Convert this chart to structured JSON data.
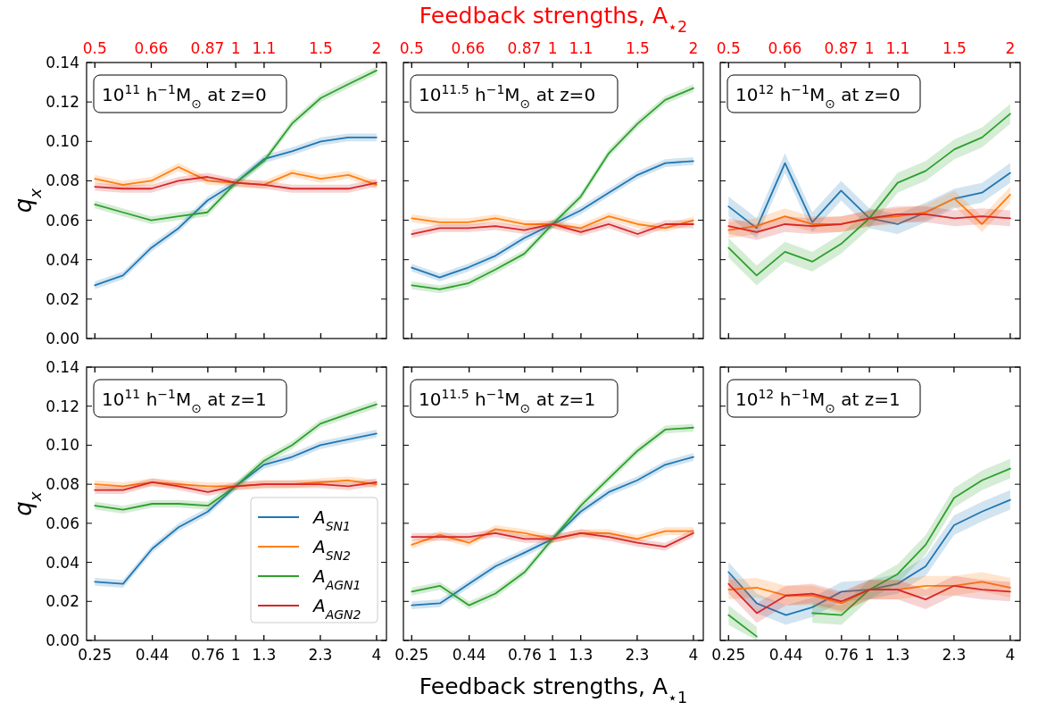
{
  "chart_data": [
    {
      "type": "line",
      "x": [
        0.5,
        0.574,
        0.66,
        0.755,
        0.87,
        1,
        1.149,
        1.319,
        1.52,
        1.741,
        2
      ],
      "log": "x",
      "xlim": [
        0.48,
        2.1
      ],
      "xticks": [
        0.5,
        0.66,
        0.87,
        1,
        {
          "value": 1.15,
          "label": "1.1"
        },
        {
          "value": 1.52,
          "label": "1.5"
        },
        2
      ],
      "ylabel": "q$_{x}$",
      "ylim": [
        0,
        0.14
      ],
      "yticks": [
        {
          "value": 0,
          "label": "0.00"
        },
        {
          "value": 0.02,
          "label": "0.02"
        },
        {
          "value": 0.04,
          "label": "0.04"
        },
        {
          "value": 0.06,
          "label": "0.06"
        },
        {
          "value": 0.08,
          "label": "0.08"
        },
        {
          "value": 0.1,
          "label": "0.10"
        },
        {
          "value": 0.12,
          "label": "0.12"
        },
        {
          "value": 0.14,
          "label": "0.14"
        }
      ],
      "annotations": [
        "10$^{11}$ h$^{−1}$M$_{⊙}$ at z=0"
      ],
      "series": [
        {
          "color": "#1f77b4",
          "values": [
            0.027,
            0.032,
            0.046,
            0.056,
            0.07,
            0.079,
            0.091,
            0.095,
            0.1,
            0.102,
            0.102
          ],
          "lower": [
            0.025,
            0.03,
            0.044,
            0.054,
            0.068,
            0.077,
            0.089,
            0.093,
            0.098,
            0.1,
            0.1
          ],
          "upper": [
            0.029,
            0.034,
            0.048,
            0.058,
            0.072,
            0.081,
            0.093,
            0.097,
            0.102,
            0.104,
            0.104
          ]
        },
        {
          "color": "#ff7f0e",
          "values": [
            0.081,
            0.078,
            0.08,
            0.087,
            0.08,
            0.079,
            0.078,
            0.084,
            0.081,
            0.083,
            0.078
          ],
          "lower": [
            0.079,
            0.076,
            0.078,
            0.085,
            0.078,
            0.077,
            0.076,
            0.082,
            0.079,
            0.081,
            0.076
          ],
          "upper": [
            0.083,
            0.08,
            0.082,
            0.089,
            0.082,
            0.081,
            0.08,
            0.086,
            0.083,
            0.085,
            0.08
          ]
        },
        {
          "color": "#2ca02c",
          "values": [
            0.068,
            0.064,
            0.06,
            0.062,
            0.064,
            0.079,
            0.09,
            0.109,
            0.122,
            0.129,
            0.136
          ],
          "lower": [
            0.066,
            0.062,
            0.058,
            0.06,
            0.062,
            0.077,
            0.088,
            0.107,
            0.12,
            0.127,
            0.134
          ],
          "upper": [
            0.07,
            0.066,
            0.062,
            0.064,
            0.066,
            0.081,
            0.092,
            0.111,
            0.124,
            0.131,
            0.138
          ]
        },
        {
          "color": "#d62728",
          "values": [
            0.077,
            0.076,
            0.076,
            0.08,
            0.082,
            0.079,
            0.078,
            0.076,
            0.076,
            0.076,
            0.079
          ],
          "lower": [
            0.075,
            0.074,
            0.074,
            0.078,
            0.08,
            0.077,
            0.076,
            0.074,
            0.074,
            0.074,
            0.077
          ],
          "upper": [
            0.079,
            0.078,
            0.078,
            0.082,
            0.084,
            0.081,
            0.08,
            0.078,
            0.078,
            0.078,
            0.081
          ]
        }
      ]
    },
    {
      "type": "line",
      "x": [
        0.5,
        0.574,
        0.66,
        0.755,
        0.87,
        1,
        1.149,
        1.319,
        1.52,
        1.741,
        2
      ],
      "log": "x",
      "xlim": [
        0.48,
        2.1
      ],
      "xticks": [
        0.5,
        0.66,
        0.87,
        1,
        {
          "value": 1.15,
          "label": "1.1"
        },
        {
          "value": 1.52,
          "label": "1.5"
        },
        2
      ],
      "xlabel": "Feedback strengths, A$_{⋆2}$",
      "ylim": [
        0,
        0.14
      ],
      "yticks": [
        0,
        0.02,
        0.04,
        0.06,
        0.08,
        0.1,
        0.12,
        0.14
      ],
      "tick_labels": "x",
      "annotations": [
        "10$^{11.5}$ h$^{−1}$M$_{⊙}$ at z=0"
      ],
      "series": [
        {
          "color": "#1f77b4",
          "values": [
            0.036,
            0.031,
            0.036,
            0.042,
            0.051,
            0.058,
            0.065,
            0.074,
            0.083,
            0.089,
            0.09
          ],
          "lower": [
            0.034,
            0.029,
            0.034,
            0.04,
            0.049,
            0.056,
            0.063,
            0.072,
            0.081,
            0.087,
            0.088
          ],
          "upper": [
            0.038,
            0.033,
            0.038,
            0.044,
            0.053,
            0.06,
            0.067,
            0.076,
            0.085,
            0.091,
            0.092
          ]
        },
        {
          "color": "#ff7f0e",
          "values": [
            0.061,
            0.059,
            0.059,
            0.061,
            0.058,
            0.058,
            0.056,
            0.062,
            0.058,
            0.056,
            0.06
          ],
          "lower": [
            0.059,
            0.057,
            0.057,
            0.059,
            0.056,
            0.056,
            0.054,
            0.06,
            0.056,
            0.054,
            0.058
          ],
          "upper": [
            0.063,
            0.061,
            0.061,
            0.063,
            0.06,
            0.06,
            0.058,
            0.064,
            0.06,
            0.058,
            0.062
          ]
        },
        {
          "color": "#2ca02c",
          "values": [
            0.027,
            0.025,
            0.028,
            0.035,
            0.043,
            0.058,
            0.072,
            0.094,
            0.109,
            0.121,
            0.127
          ],
          "lower": [
            0.025,
            0.023,
            0.026,
            0.033,
            0.041,
            0.056,
            0.07,
            0.092,
            0.107,
            0.119,
            0.125
          ],
          "upper": [
            0.029,
            0.027,
            0.03,
            0.037,
            0.045,
            0.06,
            0.074,
            0.096,
            0.111,
            0.123,
            0.129
          ]
        },
        {
          "color": "#d62728",
          "values": [
            0.053,
            0.056,
            0.056,
            0.057,
            0.055,
            0.058,
            0.054,
            0.058,
            0.053,
            0.058,
            0.058
          ],
          "lower": [
            0.051,
            0.054,
            0.054,
            0.055,
            0.053,
            0.056,
            0.052,
            0.056,
            0.051,
            0.056,
            0.056
          ],
          "upper": [
            0.055,
            0.058,
            0.058,
            0.059,
            0.057,
            0.06,
            0.056,
            0.06,
            0.055,
            0.06,
            0.06
          ]
        }
      ]
    },
    {
      "type": "line",
      "x": [
        0.5,
        0.574,
        0.66,
        0.755,
        0.87,
        1,
        1.149,
        1.319,
        1.52,
        1.741,
        2
      ],
      "log": "x",
      "xlim": [
        0.48,
        2.1
      ],
      "xticks": [
        0.5,
        0.66,
        0.87,
        1,
        {
          "value": 1.15,
          "label": "1.1"
        },
        {
          "value": 1.52,
          "label": "1.5"
        },
        2
      ],
      "ylim": [
        0,
        0.14
      ],
      "yticks": [
        0,
        0.02,
        0.04,
        0.06,
        0.08,
        0.1,
        0.12,
        0.14
      ],
      "tick_labels": "x",
      "annotations": [
        "10$^{12}$ h$^{−1}$M$_{⊙}$ at z=0"
      ],
      "series": [
        {
          "color": "#1f77b4",
          "values": [
            0.067,
            0.056,
            0.089,
            0.059,
            0.075,
            0.061,
            0.058,
            0.064,
            0.071,
            0.074,
            0.084
          ],
          "lower": [
            0.062,
            0.051,
            0.084,
            0.054,
            0.07,
            0.056,
            0.053,
            0.059,
            0.066,
            0.069,
            0.079
          ],
          "upper": [
            0.072,
            0.061,
            0.094,
            0.064,
            0.08,
            0.066,
            0.063,
            0.069,
            0.076,
            0.079,
            0.089
          ]
        },
        {
          "color": "#ff7f0e",
          "values": [
            0.055,
            0.057,
            0.062,
            0.058,
            0.058,
            0.061,
            0.062,
            0.064,
            0.071,
            0.058,
            0.073
          ],
          "lower": [
            0.051,
            0.053,
            0.058,
            0.054,
            0.054,
            0.057,
            0.058,
            0.06,
            0.067,
            0.054,
            0.069
          ],
          "upper": [
            0.059,
            0.061,
            0.066,
            0.062,
            0.062,
            0.065,
            0.066,
            0.068,
            0.075,
            0.062,
            0.077
          ]
        },
        {
          "color": "#2ca02c",
          "values": [
            0.046,
            0.032,
            0.044,
            0.039,
            0.048,
            0.061,
            0.079,
            0.085,
            0.096,
            0.102,
            0.114
          ],
          "lower": [
            0.041,
            0.027,
            0.039,
            0.034,
            0.043,
            0.056,
            0.074,
            0.08,
            0.091,
            0.097,
            0.109
          ],
          "upper": [
            0.051,
            0.037,
            0.049,
            0.044,
            0.053,
            0.066,
            0.084,
            0.09,
            0.101,
            0.107,
            0.119
          ]
        },
        {
          "color": "#d62728",
          "values": [
            0.057,
            0.054,
            0.058,
            0.057,
            0.058,
            0.061,
            0.063,
            0.063,
            0.061,
            0.062,
            0.061
          ],
          "lower": [
            0.053,
            0.05,
            0.054,
            0.053,
            0.054,
            0.057,
            0.059,
            0.059,
            0.057,
            0.058,
            0.057
          ],
          "upper": [
            0.061,
            0.058,
            0.062,
            0.061,
            0.062,
            0.065,
            0.067,
            0.067,
            0.065,
            0.066,
            0.065
          ]
        }
      ]
    },
    {
      "type": "line",
      "x": [
        0.25,
        0.33,
        0.44,
        0.57,
        0.76,
        1,
        1.32,
        1.74,
        2.3,
        3.03,
        4
      ],
      "log": "x",
      "xlim": [
        0.2304,
        4.41
      ],
      "xticks": [
        0.25,
        0.44,
        0.76,
        1,
        {
          "value": 1.32,
          "label": "1.3"
        },
        2.3,
        4
      ],
      "ylabel": "q$_{x}$",
      "ylim": [
        0,
        0.14
      ],
      "yticks": [
        {
          "value": 0,
          "label": "0.00"
        },
        {
          "value": 0.02,
          "label": "0.02"
        },
        {
          "value": 0.04,
          "label": "0.04"
        },
        {
          "value": 0.06,
          "label": "0.06"
        },
        {
          "value": 0.08,
          "label": "0.08"
        },
        {
          "value": 0.1,
          "label": "0.10"
        },
        {
          "value": 0.12,
          "label": "0.12"
        },
        {
          "value": 0.14,
          "label": "0.14"
        }
      ],
      "legend": "bottom right",
      "annotations": [
        "10$^{11}$ h$^{−1}$M$_{⊙}$ at z=1"
      ],
      "series": [
        {
          "name": "A$_{SN1}$",
          "color": "#1f77b4",
          "values": [
            0.03,
            0.029,
            0.047,
            0.058,
            0.066,
            0.079,
            0.09,
            0.094,
            0.1,
            0.103,
            0.106
          ],
          "lower": [
            0.028,
            0.027,
            0.045,
            0.056,
            0.064,
            0.077,
            0.088,
            0.092,
            0.098,
            0.101,
            0.104
          ],
          "upper": [
            0.032,
            0.031,
            0.049,
            0.06,
            0.068,
            0.081,
            0.092,
            0.096,
            0.102,
            0.105,
            0.108
          ]
        },
        {
          "name": "A$_{SN2}$",
          "color": "#ff7f0e",
          "values": [
            0.08,
            0.079,
            0.081,
            0.08,
            0.079,
            0.079,
            0.08,
            0.08,
            0.081,
            0.082,
            0.08
          ],
          "lower": [
            0.078,
            0.077,
            0.079,
            0.078,
            0.077,
            0.077,
            0.078,
            0.078,
            0.079,
            0.08,
            0.078
          ],
          "upper": [
            0.082,
            0.081,
            0.083,
            0.082,
            0.081,
            0.081,
            0.082,
            0.082,
            0.083,
            0.084,
            0.082
          ]
        },
        {
          "name": "A$_{AGN1}$",
          "color": "#2ca02c",
          "values": [
            0.069,
            0.067,
            0.07,
            0.07,
            0.069,
            0.079,
            0.092,
            0.1,
            0.111,
            0.116,
            0.121
          ],
          "lower": [
            0.067,
            0.065,
            0.068,
            0.068,
            0.067,
            0.077,
            0.09,
            0.098,
            0.109,
            0.114,
            0.119
          ],
          "upper": [
            0.071,
            0.069,
            0.072,
            0.072,
            0.071,
            0.081,
            0.094,
            0.102,
            0.113,
            0.118,
            0.123
          ]
        },
        {
          "name": "A$_{AGN2}$",
          "color": "#d62728",
          "values": [
            0.077,
            0.077,
            0.081,
            0.079,
            0.076,
            0.079,
            0.08,
            0.08,
            0.08,
            0.079,
            0.081
          ],
          "lower": [
            0.075,
            0.075,
            0.079,
            0.077,
            0.074,
            0.077,
            0.078,
            0.078,
            0.078,
            0.077,
            0.079
          ],
          "upper": [
            0.079,
            0.079,
            0.083,
            0.081,
            0.078,
            0.081,
            0.082,
            0.082,
            0.082,
            0.081,
            0.083
          ]
        }
      ]
    },
    {
      "type": "line",
      "x": [
        0.25,
        0.33,
        0.44,
        0.57,
        0.76,
        1,
        1.32,
        1.74,
        2.3,
        3.03,
        4
      ],
      "log": "x",
      "xlim": [
        0.2304,
        4.41
      ],
      "xticks": [
        0.25,
        0.44,
        0.76,
        1,
        {
          "value": 1.32,
          "label": "1.3"
        },
        2.3,
        4
      ],
      "xlabel": "Feedback strengths, A$_{⋆1}$",
      "ylim": [
        0,
        0.14
      ],
      "yticks": [
        0,
        0.02,
        0.04,
        0.06,
        0.08,
        0.1,
        0.12,
        0.14
      ],
      "tick_labels": "x",
      "annotations": [
        "10$^{11.5}$ h$^{−1}$M$_{⊙}$ at z=1"
      ],
      "series": [
        {
          "color": "#1f77b4",
          "values": [
            0.018,
            0.019,
            0.029,
            0.038,
            0.045,
            0.052,
            0.066,
            0.076,
            0.082,
            0.09,
            0.094
          ],
          "lower": [
            0.016,
            0.017,
            0.027,
            0.036,
            0.043,
            0.05,
            0.064,
            0.074,
            0.08,
            0.088,
            0.092
          ],
          "upper": [
            0.02,
            0.021,
            0.031,
            0.04,
            0.047,
            0.054,
            0.068,
            0.078,
            0.084,
            0.092,
            0.096
          ]
        },
        {
          "color": "#ff7f0e",
          "values": [
            0.049,
            0.054,
            0.05,
            0.057,
            0.055,
            0.052,
            0.055,
            0.055,
            0.052,
            0.056,
            0.056
          ],
          "lower": [
            0.047,
            0.052,
            0.048,
            0.055,
            0.053,
            0.05,
            0.053,
            0.053,
            0.05,
            0.054,
            0.054
          ],
          "upper": [
            0.051,
            0.056,
            0.052,
            0.059,
            0.057,
            0.054,
            0.057,
            0.057,
            0.054,
            0.058,
            0.058
          ]
        },
        {
          "color": "#2ca02c",
          "values": [
            0.025,
            0.028,
            0.018,
            0.024,
            0.035,
            0.052,
            0.069,
            0.083,
            0.097,
            0.108,
            0.109
          ],
          "lower": [
            0.023,
            0.026,
            0.016,
            0.022,
            0.033,
            0.05,
            0.067,
            0.081,
            0.095,
            0.106,
            0.107
          ],
          "upper": [
            0.027,
            0.03,
            0.02,
            0.026,
            0.037,
            0.054,
            0.071,
            0.085,
            0.099,
            0.11,
            0.111
          ]
        },
        {
          "color": "#d62728",
          "values": [
            0.053,
            0.053,
            0.053,
            0.055,
            0.052,
            0.052,
            0.055,
            0.053,
            0.05,
            0.048,
            0.055
          ],
          "lower": [
            0.051,
            0.051,
            0.051,
            0.053,
            0.05,
            0.05,
            0.053,
            0.051,
            0.048,
            0.046,
            0.053
          ],
          "upper": [
            0.055,
            0.055,
            0.055,
            0.057,
            0.054,
            0.054,
            0.057,
            0.055,
            0.052,
            0.05,
            0.057
          ]
        }
      ]
    },
    {
      "type": "line",
      "x": [
        0.25,
        0.33,
        0.44,
        0.57,
        0.76,
        1,
        1.32,
        1.74,
        2.3,
        3.03,
        4
      ],
      "log": "x",
      "xlim": [
        0.2304,
        4.41
      ],
      "xticks": [
        0.25,
        0.44,
        0.76,
        1,
        {
          "value": 1.32,
          "label": "1.3"
        },
        2.3,
        4
      ],
      "ylim": [
        0,
        0.14
      ],
      "yticks": [
        0,
        0.02,
        0.04,
        0.06,
        0.08,
        0.1,
        0.12,
        0.14
      ],
      "tick_labels": "x",
      "annotations": [
        "10$^{12}$ h$^{−1}$M$_{⊙}$ at z=1"
      ],
      "series": [
        {
          "color": "#1f77b4",
          "values": [
            0.035,
            0.019,
            0.013,
            0.017,
            0.025,
            0.026,
            0.029,
            0.038,
            0.059,
            0.066,
            0.072
          ],
          "lower": [
            0.03,
            0.014,
            0.008,
            0.012,
            0.02,
            0.021,
            0.024,
            0.033,
            0.054,
            0.061,
            0.067
          ],
          "upper": [
            0.04,
            0.024,
            0.018,
            0.022,
            0.03,
            0.031,
            0.034,
            0.043,
            0.064,
            0.071,
            0.077
          ]
        },
        {
          "color": "#ff7f0e",
          "values": [
            0.026,
            0.027,
            0.023,
            0.023,
            0.019,
            0.026,
            0.026,
            0.028,
            0.028,
            0.03,
            0.027
          ],
          "lower": [
            0.021,
            0.022,
            0.018,
            0.018,
            0.014,
            0.021,
            0.021,
            0.023,
            0.023,
            0.025,
            0.022
          ],
          "upper": [
            0.031,
            0.032,
            0.028,
            0.028,
            0.024,
            0.031,
            0.031,
            0.033,
            0.033,
            0.035,
            0.032
          ]
        },
        {
          "color": "#2ca02c",
          "values": [
            0.013,
            0.002,
            null,
            0.014,
            0.013,
            0.026,
            0.034,
            0.049,
            0.073,
            0.082,
            0.088
          ],
          "lower": [
            0.008,
            0.0,
            null,
            0.009,
            0.008,
            0.021,
            0.029,
            0.044,
            0.068,
            0.077,
            0.083
          ],
          "upper": [
            0.018,
            0.007,
            null,
            0.019,
            0.018,
            0.031,
            0.039,
            0.054,
            0.078,
            0.087,
            0.093
          ]
        },
        {
          "color": "#d62728",
          "values": [
            0.029,
            0.014,
            0.023,
            0.024,
            0.02,
            0.026,
            0.026,
            0.021,
            0.028,
            0.026,
            0.025
          ],
          "lower": [
            0.024,
            0.009,
            0.018,
            0.019,
            0.015,
            0.021,
            0.021,
            0.016,
            0.023,
            0.021,
            0.02
          ],
          "upper": [
            0.034,
            0.019,
            0.028,
            0.029,
            0.025,
            0.031,
            0.031,
            0.026,
            0.033,
            0.031,
            0.03
          ]
        }
      ]
    }
  ]
}
